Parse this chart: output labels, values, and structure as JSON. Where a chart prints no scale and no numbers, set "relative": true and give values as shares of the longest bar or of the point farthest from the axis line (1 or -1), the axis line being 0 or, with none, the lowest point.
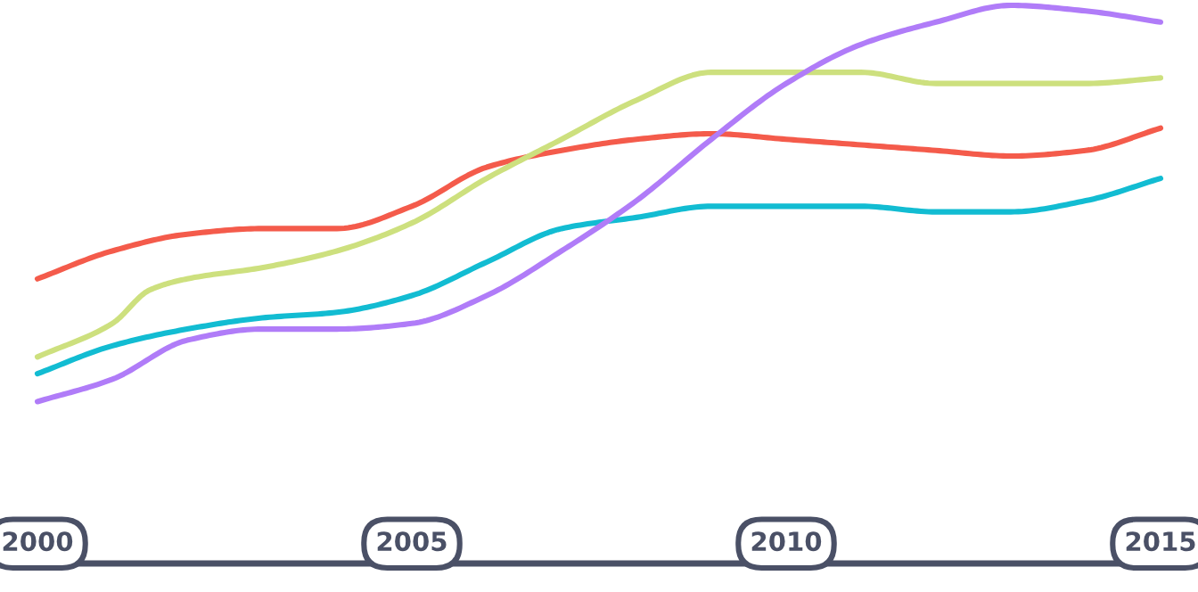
{
  "chart_data": {
    "type": "line",
    "relative": true,
    "xlim": [
      1999.5,
      2015.5
    ],
    "xticks": [
      2000,
      2005,
      2010,
      2015
    ],
    "grid": false,
    "legend": false,
    "marker": "none",
    "line_style": "solid",
    "series": [
      {
        "color": "#f45b4b",
        "x": [
          2000,
          2001,
          2002,
          2003,
          2004,
          2005,
          2006,
          2007,
          2008,
          2009,
          2010,
          2011,
          2012,
          2013,
          2014,
          2015
        ],
        "values": [
          0.51,
          0.56,
          0.59,
          0.6,
          0.6,
          0.64,
          0.71,
          0.74,
          0.76,
          0.77,
          0.76,
          0.75,
          0.74,
          0.73,
          0.74,
          0.78
        ]
      },
      {
        "color": "#cde07e",
        "x": [
          2000,
          2001,
          2001.5,
          2002,
          2003,
          2004,
          2005,
          2006,
          2007,
          2008,
          2009,
          2010,
          2011,
          2012,
          2013,
          2014,
          2015
        ],
        "values": [
          0.37,
          0.43,
          0.49,
          0.51,
          0.53,
          0.56,
          0.61,
          0.69,
          0.76,
          0.83,
          0.88,
          0.88,
          0.88,
          0.86,
          0.86,
          0.86,
          0.87
        ]
      },
      {
        "color": "#12bcd2",
        "x": [
          2000,
          2001,
          2002,
          2003,
          2004,
          2005,
          2006,
          2007,
          2008,
          2009,
          2010,
          2011,
          2012,
          2013,
          2014,
          2015
        ],
        "values": [
          0.34,
          0.39,
          0.42,
          0.44,
          0.45,
          0.48,
          0.54,
          0.6,
          0.62,
          0.64,
          0.64,
          0.64,
          0.63,
          0.63,
          0.65,
          0.69
        ]
      },
      {
        "color": "#b07cf8",
        "x": [
          2000,
          2001,
          2002,
          2003,
          2004,
          2005,
          2006,
          2007,
          2008,
          2009,
          2010,
          2011,
          2012,
          2013,
          2014,
          2015
        ],
        "values": [
          0.29,
          0.33,
          0.4,
          0.42,
          0.42,
          0.43,
          0.48,
          0.56,
          0.65,
          0.76,
          0.86,
          0.93,
          0.97,
          1.0,
          0.99,
          0.97
        ]
      }
    ]
  }
}
